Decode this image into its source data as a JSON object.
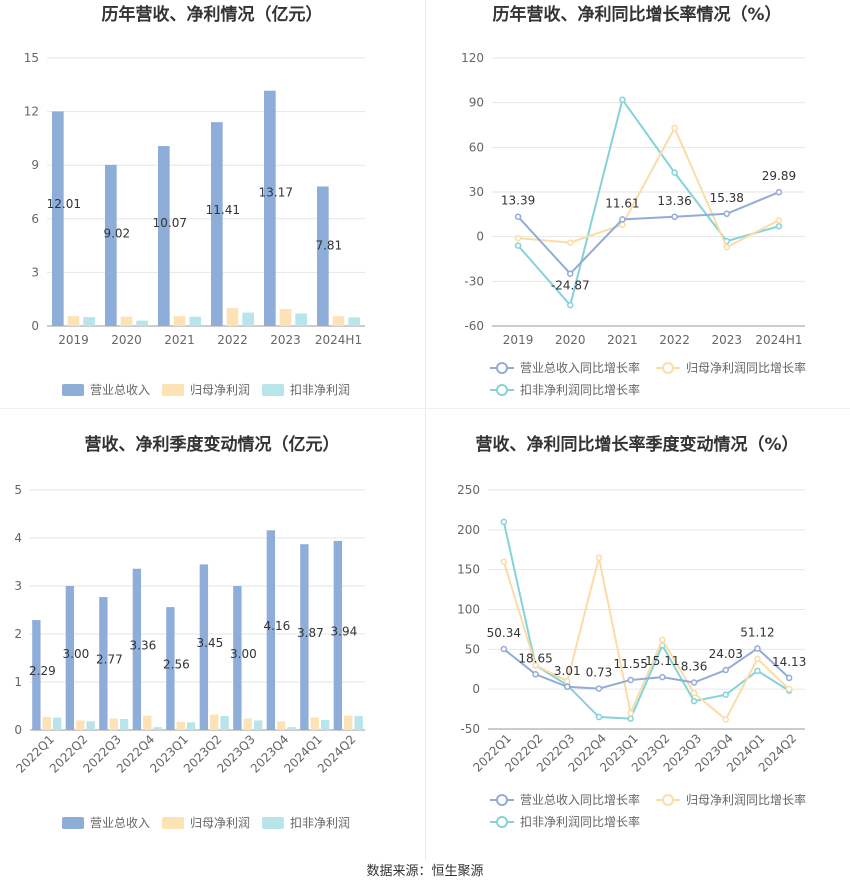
{
  "footer": {
    "source": "数据来源：恒生聚源"
  },
  "colors": {
    "revenue": "#8eadd9",
    "net_profit": "#fde2b5",
    "deducted_profit": "#b7e5e9",
    "revenue_line": "#93abd6",
    "net_profit_line": "#fbdca6",
    "deducted_line": "#84d3da",
    "grid": "#e6e6e6",
    "axis_text": "#666666",
    "title": "#333333"
  },
  "chart_data": [
    {
      "id": "annual-bar",
      "type": "bar",
      "title": "历年营收、净利情况（亿元）",
      "categories": [
        "2019",
        "2020",
        "2021",
        "2022",
        "2023",
        "2024H1"
      ],
      "ylim": [
        0,
        15
      ],
      "yticks": [
        0,
        3,
        6,
        9,
        12,
        15
      ],
      "series": [
        {
          "name": "营业总收入",
          "values": [
            12.01,
            9.02,
            10.07,
            11.41,
            13.17,
            7.81
          ],
          "labels": [
            "12.01",
            "9.02",
            "10.07",
            "11.41",
            "13.17",
            "7.81"
          ]
        },
        {
          "name": "归母净利润",
          "values": [
            0.55,
            0.52,
            0.55,
            1.0,
            0.95,
            0.55
          ]
        },
        {
          "name": "扣非净利润",
          "values": [
            0.5,
            0.3,
            0.52,
            0.75,
            0.7,
            0.48
          ]
        }
      ],
      "legend": "bottom"
    },
    {
      "id": "annual-line",
      "type": "line",
      "title": "历年营收、净利同比增长率情况（%）",
      "categories": [
        "2019",
        "2020",
        "2021",
        "2022",
        "2023",
        "2024H1"
      ],
      "ylim": [
        -60,
        120
      ],
      "yticks": [
        -60,
        -30,
        0,
        30,
        60,
        90,
        120
      ],
      "series": [
        {
          "name": "营业总收入同比增长率",
          "values": [
            13.39,
            -24.87,
            11.61,
            13.36,
            15.38,
            29.89
          ],
          "labels": [
            "13.39",
            "-24.87",
            "11.61",
            "13.36",
            "15.38",
            "29.89"
          ]
        },
        {
          "name": "归母净利润同比增长率",
          "values": [
            -1,
            -4,
            8,
            73,
            -7,
            11
          ]
        },
        {
          "name": "扣非净利润同比增长率",
          "values": [
            -6,
            -46,
            92,
            43,
            -3,
            7
          ]
        }
      ],
      "legend": "bottom"
    },
    {
      "id": "quarter-bar",
      "type": "bar",
      "title": "营收、净利季度变动情况（亿元）",
      "categories": [
        "2022Q1",
        "2022Q2",
        "2022Q3",
        "2022Q4",
        "2023Q1",
        "2023Q2",
        "2023Q3",
        "2023Q4",
        "2024Q1",
        "2024Q2"
      ],
      "ylim": [
        0,
        5
      ],
      "yticks": [
        0,
        1,
        2,
        3,
        4,
        5
      ],
      "series": [
        {
          "name": "营业总收入",
          "values": [
            2.29,
            3.0,
            2.77,
            3.36,
            2.56,
            3.45,
            3.0,
            4.16,
            3.87,
            3.94
          ],
          "labels": [
            "2.29",
            "3.00",
            "2.77",
            "3.36",
            "2.56",
            "3.45",
            "3.00",
            "4.16",
            "3.87",
            "3.94"
          ]
        },
        {
          "name": "归母净利润",
          "values": [
            0.27,
            0.2,
            0.24,
            0.3,
            0.17,
            0.32,
            0.24,
            0.18,
            0.26,
            0.3
          ]
        },
        {
          "name": "扣非净利润",
          "values": [
            0.26,
            0.18,
            0.23,
            0.06,
            0.16,
            0.29,
            0.2,
            0.06,
            0.21,
            0.29
          ]
        }
      ],
      "legend": "bottom"
    },
    {
      "id": "quarter-line",
      "type": "line",
      "title": "营收、净利同比增长率季度变动情况（%）",
      "categories": [
        "2022Q1",
        "2022Q2",
        "2022Q3",
        "2022Q4",
        "2023Q1",
        "2023Q2",
        "2023Q3",
        "2023Q4",
        "2024Q1",
        "2024Q2"
      ],
      "ylim": [
        -50,
        250
      ],
      "yticks": [
        -50,
        0,
        50,
        100,
        150,
        200,
        250
      ],
      "series": [
        {
          "name": "营业总收入同比增长率",
          "values": [
            50.34,
            18.65,
            3.01,
            0.73,
            11.55,
            15.11,
            8.36,
            24.03,
            51.12,
            14.13
          ],
          "labels": [
            "50.34",
            "18.65",
            "3.01",
            "0.73",
            "11.55",
            "15.11",
            "8.36",
            "24.03",
            "51.12",
            "14.13"
          ]
        },
        {
          "name": "归母净利润同比增长率",
          "values": [
            160,
            30,
            10,
            165,
            -30,
            62,
            -5,
            -38,
            38,
            0
          ]
        },
        {
          "name": "扣非净利润同比增长率",
          "values": [
            210,
            30,
            5,
            -35,
            -37,
            55,
            -15,
            -7,
            23,
            -2
          ]
        }
      ],
      "legend": "bottom"
    }
  ]
}
